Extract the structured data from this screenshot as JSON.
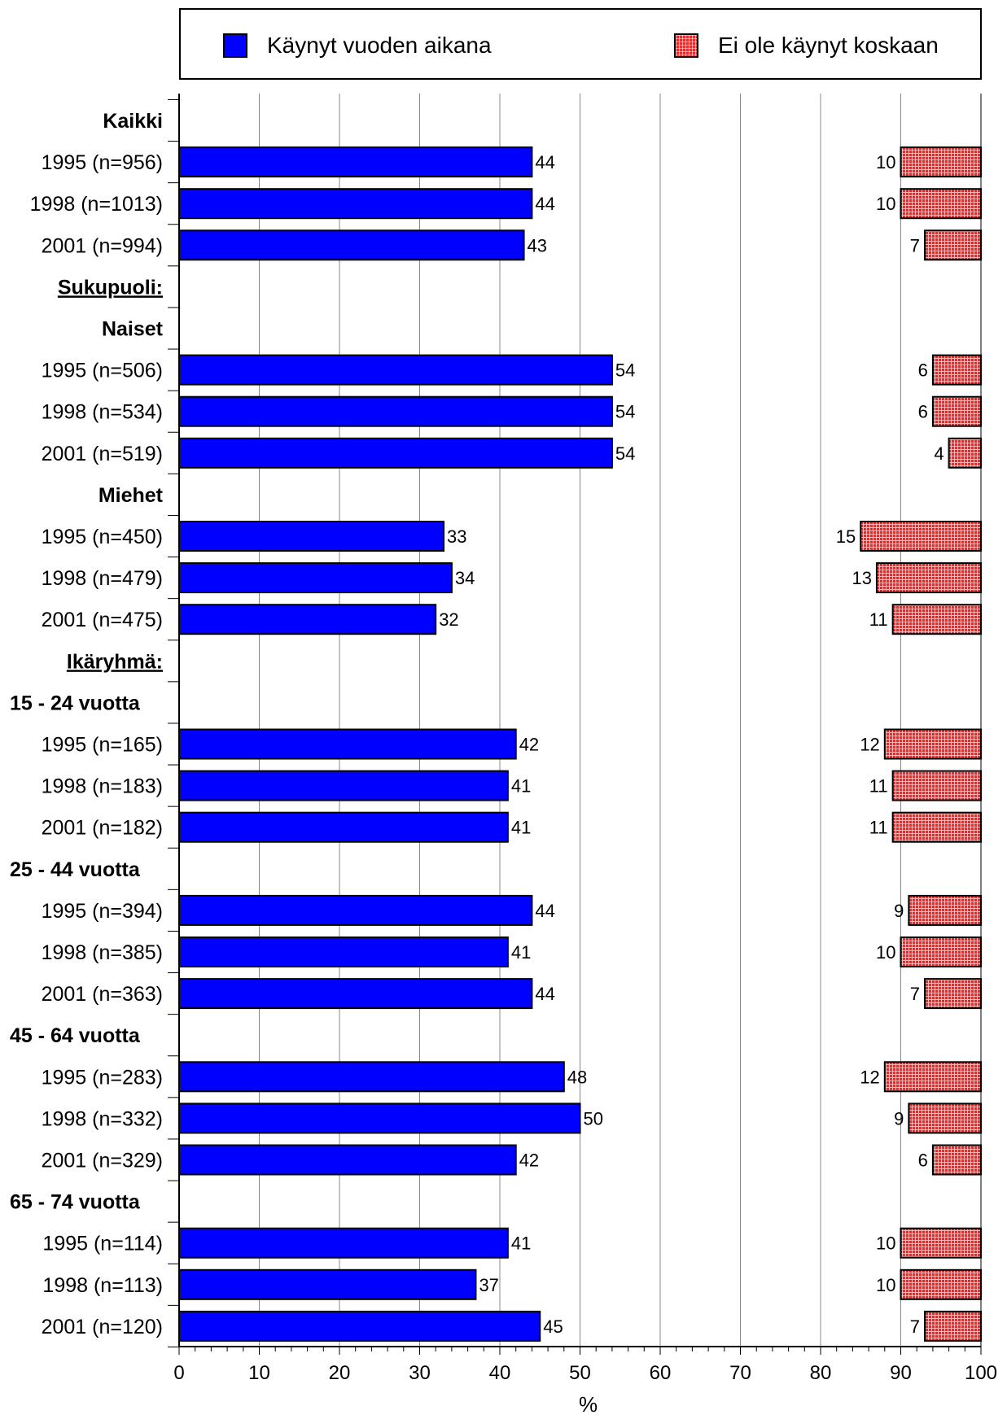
{
  "legend": {
    "series1_label": "Käynyt vuoden aikana",
    "series2_label": "Ei ole käynyt koskaan"
  },
  "colors": {
    "series1": "#0000ff",
    "series2": "#ff2020"
  },
  "chart_data": {
    "type": "bar",
    "orientation": "horizontal",
    "xlabel": "%",
    "xlim": [
      0,
      100
    ],
    "xticks": [
      "0",
      "10",
      "20",
      "30",
      "40",
      "50",
      "60",
      "70",
      "80",
      "90",
      "100"
    ],
    "grid": "vertical",
    "legend_position": "top",
    "rows": [
      {
        "label": "Kaikki",
        "kind": "heading"
      },
      {
        "label": "1995   (n=956)",
        "v1": 44,
        "v2": 10
      },
      {
        "label": "1998 (n=1013)",
        "v1": 44,
        "v2": 10
      },
      {
        "label": "2001 (n=994)",
        "v1": 43,
        "v2": 7
      },
      {
        "label": "Sukupuoli:",
        "kind": "section"
      },
      {
        "label": "Naiset",
        "kind": "heading"
      },
      {
        "label": "1995 (n=506)",
        "v1": 54,
        "v2": 6
      },
      {
        "label": "1998 (n=534)",
        "v1": 54,
        "v2": 6
      },
      {
        "label": "2001 (n=519)",
        "v1": 54,
        "v2": 4
      },
      {
        "label": "Miehet",
        "kind": "heading"
      },
      {
        "label": "1995 (n=450)",
        "v1": 33,
        "v2": 15
      },
      {
        "label": "1998 (n=479)",
        "v1": 34,
        "v2": 13
      },
      {
        "label": "2001 (n=475)",
        "v1": 32,
        "v2": 11
      },
      {
        "label": "Ikäryhmä:",
        "kind": "section"
      },
      {
        "label": "15 - 24 vuotta",
        "kind": "heading"
      },
      {
        "label": "1995 (n=165)",
        "v1": 42,
        "v2": 12
      },
      {
        "label": "1998 (n=183)",
        "v1": 41,
        "v2": 11
      },
      {
        "label": "2001 (n=182)",
        "v1": 41,
        "v2": 11
      },
      {
        "label": "25 - 44 vuotta",
        "kind": "heading"
      },
      {
        "label": "1995 (n=394)",
        "v1": 44,
        "v2": 9
      },
      {
        "label": "1998 (n=385)",
        "v1": 41,
        "v2": 10
      },
      {
        "label": "2001 (n=363)",
        "v1": 44,
        "v2": 7
      },
      {
        "label": "45 - 64 vuotta",
        "kind": "heading"
      },
      {
        "label": "1995 (n=283)",
        "v1": 48,
        "v2": 12
      },
      {
        "label": "1998 (n=332)",
        "v1": 50,
        "v2": 9
      },
      {
        "label": "2001 (n=329)",
        "v1": 42,
        "v2": 6
      },
      {
        "label": "65 - 74 vuotta",
        "kind": "heading"
      },
      {
        "label": "1995 (n=114)",
        "v1": 41,
        "v2": 10
      },
      {
        "label": "1998 (n=113)",
        "v1": 37,
        "v2": 10
      },
      {
        "label": "2001 (n=120)",
        "v1": 45,
        "v2": 7
      }
    ]
  }
}
